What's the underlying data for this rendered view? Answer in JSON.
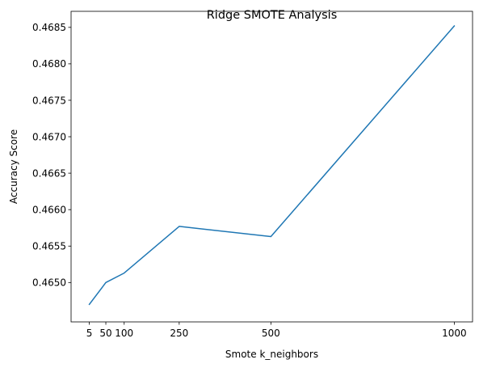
{
  "chart_data": {
    "type": "line",
    "title": "Ridge SMOTE Analysis",
    "xlabel": "Smote k_neighbors",
    "ylabel": "Accuracy Score",
    "x": [
      5,
      50,
      100,
      250,
      500,
      1000
    ],
    "xticks": [
      5,
      50,
      100,
      250,
      500,
      1000
    ],
    "xtick_labels": [
      "5",
      "50",
      "100",
      "250",
      "500",
      "1000"
    ],
    "xlim": [
      -44.75,
      1049.75
    ],
    "ylim": [
      0.46446,
      0.46872
    ],
    "yticks": [
      0.465,
      0.4655,
      0.466,
      0.4665,
      0.467,
      0.4675,
      0.468,
      0.4685
    ],
    "ytick_labels": [
      "0.4650",
      "0.4655",
      "0.4660",
      "0.4665",
      "0.4670",
      "0.4675",
      "0.4680",
      "0.4685"
    ],
    "grid": false,
    "series": [
      {
        "color": "#1f77b4",
        "values": [
          0.4647,
          0.465,
          0.46513,
          0.46577,
          0.46563,
          0.46852
        ]
      }
    ]
  }
}
